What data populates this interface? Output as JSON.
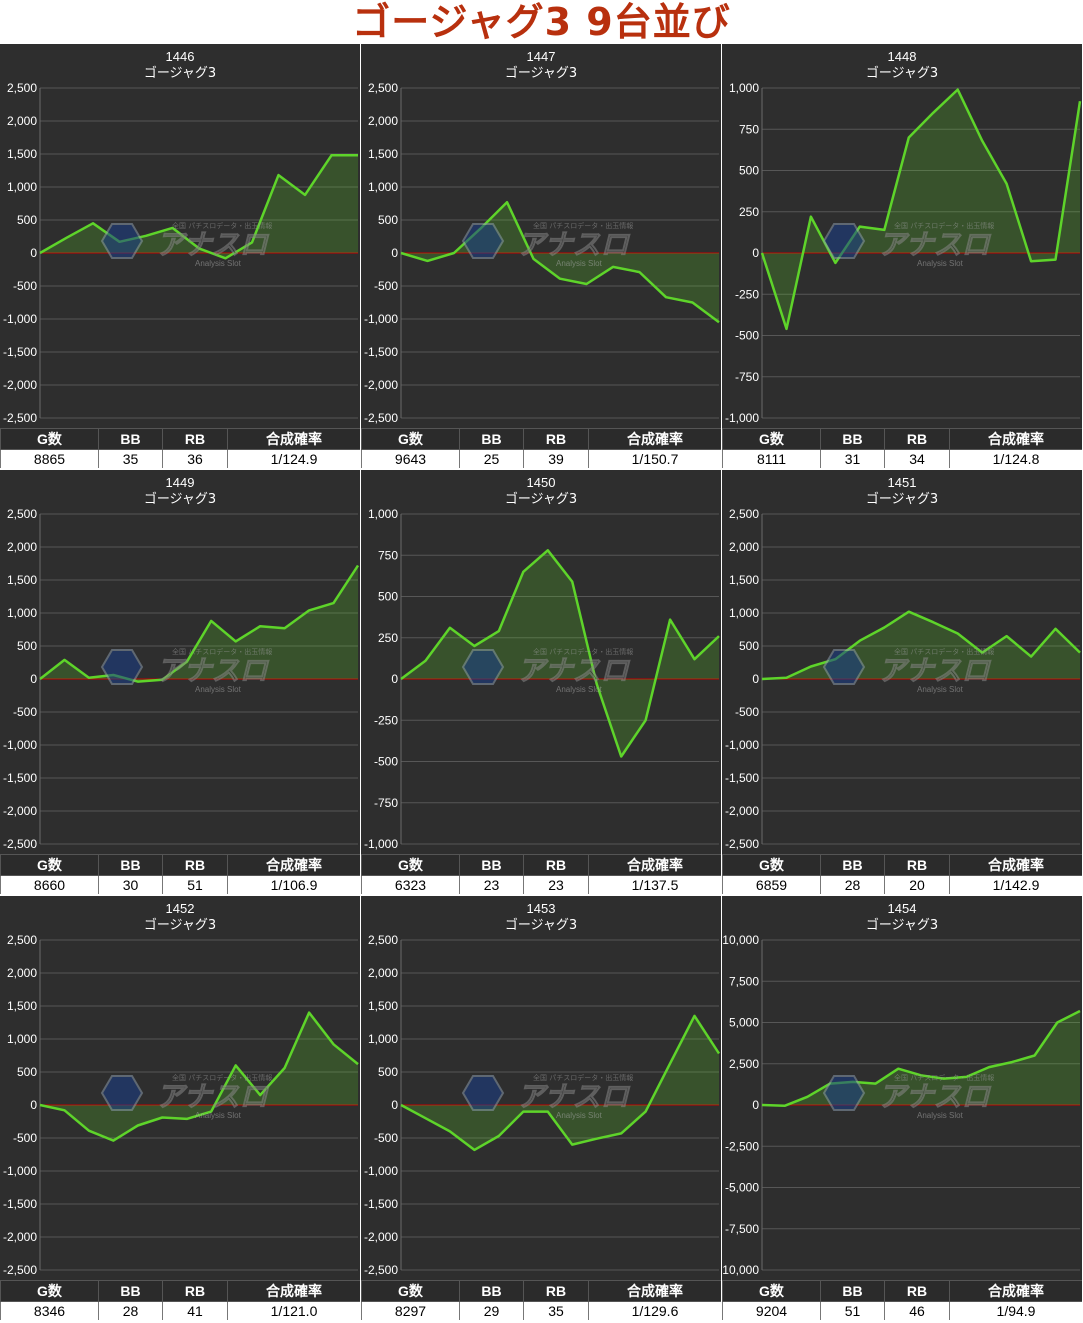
{
  "page": {
    "title": "ゴージャグ3 9台並び"
  },
  "table_headers": [
    "G数",
    "BB",
    "RB",
    "合成確率"
  ],
  "colors": {
    "line": "#5ed42a",
    "zero": "#cc0000",
    "bg": "#2e2e2e",
    "title": "#b8300e"
  },
  "watermark": {
    "brand": "アナスロ",
    "sub": "Analysis Slot",
    "top": "全国 パチスロデータ・出玉情報"
  },
  "chart_data": [
    {
      "type": "area",
      "number": "1446",
      "machine": "ゴージャグ3",
      "ylim": [
        -2500,
        2500
      ],
      "yticks": [
        2500,
        2000,
        1500,
        1000,
        500,
        0,
        -500,
        -1000,
        -1500,
        -2000,
        -2500
      ],
      "values": [
        0,
        230,
        450,
        170,
        260,
        380,
        70,
        -80,
        160,
        1180,
        880,
        1480,
        1480
      ],
      "stats": {
        "games": "8865",
        "bb": "35",
        "rb": "36",
        "prob": "1/124.9"
      }
    },
    {
      "type": "area",
      "number": "1447",
      "machine": "ゴージャグ3",
      "ylim": [
        -2500,
        2500
      ],
      "yticks": [
        2500,
        2000,
        1500,
        1000,
        500,
        0,
        -500,
        -1000,
        -1500,
        -2000,
        -2500
      ],
      "values": [
        0,
        -120,
        0,
        370,
        770,
        -90,
        -390,
        -470,
        -210,
        -290,
        -670,
        -750,
        -1050
      ],
      "stats": {
        "games": "9643",
        "bb": "25",
        "rb": "39",
        "prob": "1/150.7"
      }
    },
    {
      "type": "area",
      "number": "1448",
      "machine": "ゴージャグ3",
      "ylim": [
        -1000,
        1000
      ],
      "yticks": [
        1000,
        750,
        500,
        250,
        0,
        -250,
        -500,
        -750,
        -1000
      ],
      "values": [
        0,
        -460,
        220,
        -60,
        160,
        140,
        700,
        850,
        990,
        680,
        420,
        -50,
        -40,
        920
      ],
      "stats": {
        "games": "8111",
        "bb": "31",
        "rb": "34",
        "prob": "1/124.8"
      }
    },
    {
      "type": "area",
      "number": "1449",
      "machine": "ゴージャグ3",
      "ylim": [
        -2500,
        2500
      ],
      "yticks": [
        2500,
        2000,
        1500,
        1000,
        500,
        0,
        -500,
        -1000,
        -1500,
        -2000,
        -2500
      ],
      "values": [
        0,
        290,
        20,
        60,
        -40,
        -10,
        260,
        880,
        570,
        800,
        770,
        1040,
        1150,
        1720
      ],
      "stats": {
        "games": "8660",
        "bb": "30",
        "rb": "51",
        "prob": "1/106.9"
      }
    },
    {
      "type": "area",
      "number": "1450",
      "machine": "ゴージャグ3",
      "ylim": [
        -1000,
        1000
      ],
      "yticks": [
        1000,
        750,
        500,
        250,
        0,
        -250,
        -500,
        -750,
        -1000
      ],
      "values": [
        0,
        110,
        310,
        200,
        290,
        650,
        780,
        590,
        -30,
        -470,
        -250,
        360,
        120,
        260
      ],
      "stats": {
        "games": "6323",
        "bb": "23",
        "rb": "23",
        "prob": "1/137.5"
      }
    },
    {
      "type": "area",
      "number": "1451",
      "machine": "ゴージャグ3",
      "ylim": [
        -2500,
        2500
      ],
      "yticks": [
        2500,
        2000,
        1500,
        1000,
        500,
        0,
        -500,
        -1000,
        -1500,
        -2000,
        -2500
      ],
      "values": [
        0,
        20,
        190,
        300,
        580,
        780,
        1020,
        860,
        690,
        400,
        650,
        340,
        760,
        400
      ],
      "stats": {
        "games": "6859",
        "bb": "28",
        "rb": "20",
        "prob": "1/142.9"
      }
    },
    {
      "type": "area",
      "number": "1452",
      "machine": "ゴージャグ3",
      "ylim": [
        -2500,
        2500
      ],
      "yticks": [
        2500,
        2000,
        1500,
        1000,
        500,
        0,
        -500,
        -1000,
        -1500,
        -2000,
        -2500
      ],
      "values": [
        0,
        -80,
        -390,
        -540,
        -310,
        -190,
        -210,
        -100,
        600,
        150,
        560,
        1400,
        920,
        620
      ],
      "stats": {
        "games": "8346",
        "bb": "28",
        "rb": "41",
        "prob": "1/121.0"
      }
    },
    {
      "type": "area",
      "number": "1453",
      "machine": "ゴージャグ3",
      "ylim": [
        -2500,
        2500
      ],
      "yticks": [
        2500,
        2000,
        1500,
        1000,
        500,
        0,
        -500,
        -1000,
        -1500,
        -2000,
        -2500
      ],
      "values": [
        0,
        -200,
        -400,
        -680,
        -470,
        -100,
        -100,
        -600,
        -510,
        -430,
        -100,
        630,
        1350,
        780
      ],
      "stats": {
        "games": "8297",
        "bb": "29",
        "rb": "35",
        "prob": "1/129.6"
      }
    },
    {
      "type": "area",
      "number": "1454",
      "machine": "ゴージャグ3",
      "ylim": [
        -10000,
        10000
      ],
      "yticks": [
        10000,
        7500,
        5000,
        2500,
        0,
        -2500,
        -5000,
        -7500,
        -10000
      ],
      "values": [
        0,
        -50,
        500,
        1300,
        1400,
        1300,
        2200,
        1800,
        1600,
        1700,
        2300,
        2600,
        3000,
        5000,
        5700
      ],
      "stats": {
        "games": "9204",
        "bb": "51",
        "rb": "46",
        "prob": "1/94.9"
      }
    }
  ]
}
